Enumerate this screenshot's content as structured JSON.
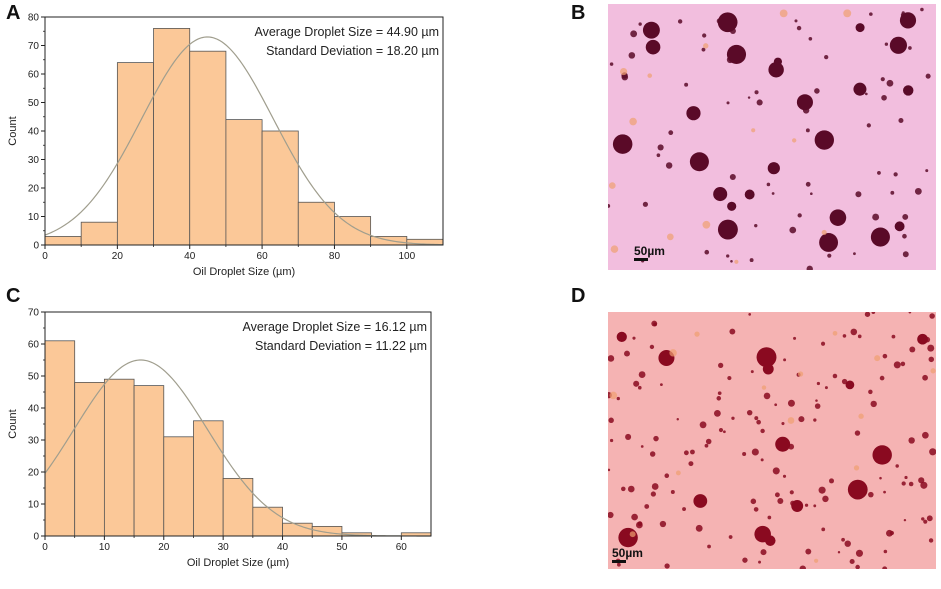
{
  "panels": {
    "A": "A",
    "B": "B",
    "C": "C",
    "D": "D"
  },
  "colors": {
    "bar_fill": "#fbc898",
    "bar_stroke": "#555555",
    "curve": "#a09e8e",
    "micro_b_bg": "#f2bede",
    "micro_b_dot": "#5a0a28",
    "micro_d_bg": "#f5b3b3",
    "micro_d_dot": "#8a0a20"
  },
  "scalebars": {
    "B": "50µm",
    "D": "50µm"
  },
  "chart_data": [
    {
      "panel": "A",
      "type": "bar",
      "subtype": "histogram",
      "bin_edges": [
        0,
        10,
        20,
        30,
        40,
        50,
        60,
        70,
        80,
        90,
        100,
        110
      ],
      "values": [
        3,
        8,
        64,
        76,
        68,
        44,
        40,
        15,
        10,
        3,
        2
      ],
      "xlabel": "Oil Droplet Size (µm)",
      "ylabel": "Count",
      "xlim": [
        0,
        110
      ],
      "ylim": [
        0,
        80
      ],
      "xticks": [
        0,
        20,
        40,
        60,
        80,
        100
      ],
      "yticks": [
        0,
        10,
        20,
        30,
        40,
        50,
        60,
        70,
        80
      ],
      "annotations": [
        "Average Droplet Size = 44.90 µm",
        "Standard Deviation = 18.20 µm"
      ],
      "fit": {
        "type": "normal",
        "mean": 44.9,
        "sd": 18.2,
        "peak": 73
      }
    },
    {
      "panel": "C",
      "type": "bar",
      "subtype": "histogram",
      "bin_edges": [
        0,
        5,
        10,
        15,
        20,
        25,
        30,
        35,
        40,
        45,
        50,
        55,
        60,
        65
      ],
      "values": [
        61,
        48,
        49,
        47,
        31,
        36,
        18,
        9,
        4,
        3,
        1,
        0,
        1
      ],
      "xlabel": "Oil Droplet Size (µm)",
      "ylabel": "Count",
      "xlim": [
        0,
        65
      ],
      "ylim": [
        0,
        70
      ],
      "xticks": [
        0,
        10,
        20,
        30,
        40,
        50,
        60
      ],
      "yticks": [
        0,
        10,
        20,
        30,
        40,
        50,
        60,
        70
      ],
      "annotations": [
        "Average Droplet Size = 16.12 µm",
        "Standard Deviation = 11.22 µm"
      ],
      "fit": {
        "type": "normal",
        "mean": 16.12,
        "sd": 11.22,
        "peak": 55
      }
    }
  ]
}
